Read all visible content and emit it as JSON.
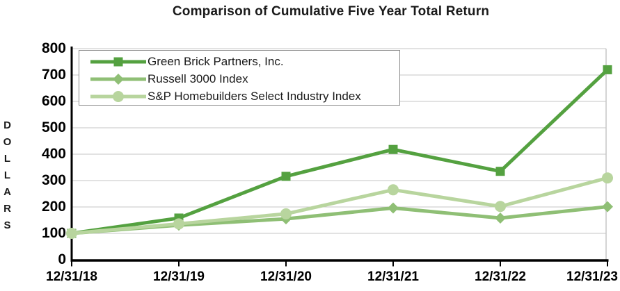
{
  "chart_data": {
    "type": "line",
    "title": "Comparison of Cumulative Five Year Total Return",
    "ylabel": "DOLLARS",
    "xlabel": "",
    "x": [
      "12/31/18",
      "12/31/19",
      "12/31/20",
      "12/31/21",
      "12/31/22",
      "12/31/23"
    ],
    "y_ticks": [
      0,
      100,
      200,
      300,
      400,
      500,
      600,
      700,
      800
    ],
    "ylim": [
      0,
      800
    ],
    "grid": "horizontal",
    "legend_position": "top-left-inside",
    "series": [
      {
        "name": "Green Brick Partners, Inc.",
        "marker": "square",
        "color": "#54a140",
        "values": [
          100,
          158,
          316,
          418,
          335,
          720
        ]
      },
      {
        "name": "Russell 3000 Index",
        "marker": "diamond",
        "color": "#8fbf75",
        "values": [
          100,
          131,
          155,
          196,
          158,
          201
        ]
      },
      {
        "name": "S&P Homebuilders Select Industry Index",
        "marker": "circle",
        "color": "#b8d59e",
        "values": [
          100,
          136,
          174,
          265,
          202,
          310
        ]
      }
    ]
  },
  "style": {
    "axis_color": "#000000",
    "gridline_color": "#c6c6c6",
    "legend_border_color": "#8c8c8c",
    "text_color": "#1a1a1a"
  }
}
